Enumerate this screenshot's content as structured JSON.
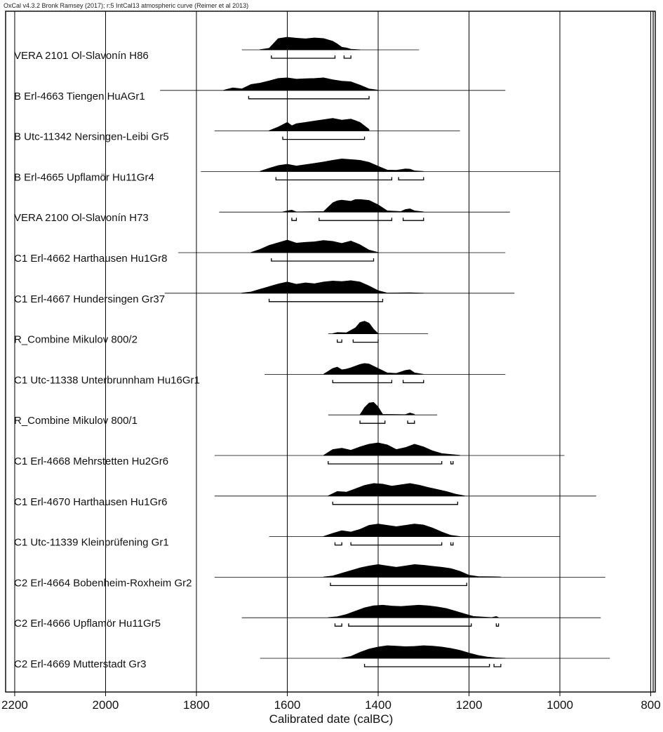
{
  "chart_data": {
    "type": "area",
    "credit": "OxCal v4.3.2 Bronk Ramsey (2017); r:5 IntCal13 atmospheric curve (Reimer et al 2013)",
    "xlabel": "Calibrated date (calBC)",
    "xlim": [
      2220,
      790
    ],
    "x_ticks": [
      2200,
      2000,
      1800,
      1600,
      1400,
      1200,
      1000,
      800
    ],
    "x_tick_labels": [
      "2200",
      "2000",
      "1800",
      "1600",
      "1400",
      "1200",
      "1000",
      "800"
    ],
    "grid": "vertical",
    "distributions": [
      {
        "label": "VERA 2101 Ol-Slavonín H86",
        "x": [
          1660,
          1640,
          1620,
          1600,
          1580,
          1560,
          1540,
          1520,
          1500,
          1490,
          1480,
          1470,
          1460,
          1440
        ],
        "y": [
          0.02,
          0.12,
          0.85,
          0.95,
          0.88,
          0.83,
          0.9,
          0.85,
          0.65,
          0.45,
          0.2,
          0.15,
          0.05,
          0.01
        ],
        "line": [
          1700,
          1310
        ],
        "ranges": [
          [
            1635,
            1495
          ],
          [
            1475,
            1460
          ]
        ]
      },
      {
        "label": "B Erl-4663 Tiengen HuAGr1",
        "x": [
          1740,
          1720,
          1700,
          1680,
          1660,
          1640,
          1620,
          1600,
          1580,
          1560,
          1540,
          1520,
          1500,
          1480,
          1460,
          1440,
          1420,
          1400
        ],
        "y": [
          0.02,
          0.2,
          0.12,
          0.45,
          0.55,
          0.72,
          0.9,
          0.95,
          0.85,
          0.88,
          0.9,
          0.95,
          0.8,
          0.7,
          0.65,
          0.4,
          0.12,
          0.02
        ],
        "line": [
          1880,
          1120
        ],
        "ranges": [
          [
            1685,
            1420
          ]
        ]
      },
      {
        "label": "B Utc-11342 Nersingen-Leibi Gr5",
        "x": [
          1640,
          1620,
          1600,
          1590,
          1580,
          1560,
          1540,
          1520,
          1500,
          1480,
          1460,
          1440,
          1420
        ],
        "y": [
          0.03,
          0.3,
          0.65,
          0.4,
          0.55,
          0.65,
          0.75,
          0.85,
          0.95,
          0.82,
          0.9,
          0.65,
          0.12
        ],
        "line": [
          1760,
          1220
        ],
        "ranges": [
          [
            1610,
            1430
          ]
        ]
      },
      {
        "label": "B Erl-4665 Upflamör Hu11Gr4",
        "x": [
          1660,
          1640,
          1620,
          1600,
          1580,
          1560,
          1540,
          1520,
          1500,
          1480,
          1460,
          1440,
          1420,
          1400,
          1380,
          1360,
          1340,
          1330,
          1320,
          1300
        ],
        "y": [
          0.02,
          0.25,
          0.45,
          0.55,
          0.42,
          0.52,
          0.62,
          0.72,
          0.85,
          0.95,
          0.9,
          0.85,
          0.7,
          0.4,
          0.12,
          0.1,
          0.2,
          0.18,
          0.06,
          0.01
        ],
        "line": [
          1790,
          1000
        ],
        "ranges": [
          [
            1625,
            1370
          ],
          [
            1355,
            1300
          ]
        ]
      },
      {
        "label": "VERA 2100 Ol-Slavonín H73",
        "x": [
          1610,
          1600,
          1590,
          1580,
          1520,
          1500,
          1490,
          1480,
          1460,
          1450,
          1440,
          1420,
          1400,
          1380,
          1350,
          1340,
          1330,
          1320,
          1300
        ],
        "y": [
          0.02,
          0.1,
          0.15,
          0.02,
          0.05,
          0.7,
          0.85,
          0.9,
          0.82,
          0.95,
          0.95,
          0.88,
          0.55,
          0.1,
          0.05,
          0.2,
          0.25,
          0.1,
          0.02
        ],
        "line": [
          1750,
          1110
        ],
        "ranges": [
          [
            1590,
            1580
          ],
          [
            1530,
            1370
          ],
          [
            1345,
            1300
          ]
        ]
      },
      {
        "label": "C1 Erl-4662 Harthausen Hu1Gr8",
        "x": [
          1680,
          1660,
          1640,
          1620,
          1600,
          1580,
          1560,
          1540,
          1520,
          1500,
          1480,
          1460,
          1440,
          1420,
          1400
        ],
        "y": [
          0.02,
          0.25,
          0.55,
          0.75,
          0.95,
          0.72,
          0.78,
          0.82,
          0.92,
          0.85,
          0.7,
          0.88,
          0.6,
          0.2,
          0.02
        ],
        "line": [
          1840,
          1120
        ],
        "ranges": [
          [
            1635,
            1410
          ]
        ]
      },
      {
        "label": "C1 Erl-4667 Hundersingen Gr37",
        "x": [
          1700,
          1680,
          1660,
          1640,
          1620,
          1600,
          1580,
          1560,
          1540,
          1520,
          1500,
          1480,
          1460,
          1440,
          1420,
          1400,
          1380,
          1330,
          1300
        ],
        "y": [
          0.02,
          0.1,
          0.3,
          0.5,
          0.7,
          0.85,
          0.68,
          0.78,
          0.72,
          0.85,
          0.92,
          0.88,
          0.95,
          0.85,
          0.55,
          0.2,
          0.02,
          0.04,
          0.01
        ],
        "line": [
          1870,
          1100
        ],
        "ranges": [
          [
            1640,
            1390
          ]
        ]
      },
      {
        "label": "R_Combine Mikulov 800/2",
        "x": [
          1500,
          1490,
          1470,
          1450,
          1440,
          1430,
          1420,
          1410,
          1400
        ],
        "y": [
          0.02,
          0.1,
          0.08,
          0.45,
          0.85,
          0.95,
          0.8,
          0.35,
          0.02
        ],
        "line": [
          1510,
          1290
        ],
        "ranges": [
          [
            1490,
            1480
          ],
          [
            1455,
            1400
          ]
        ]
      },
      {
        "label": "C1 Utc-11338 Unterbrunnham Hu16Gr1",
        "x": [
          1520,
          1500,
          1490,
          1480,
          1470,
          1460,
          1440,
          1430,
          1420,
          1400,
          1380,
          1360,
          1340,
          1330,
          1320,
          1300
        ],
        "y": [
          0.02,
          0.45,
          0.55,
          0.35,
          0.4,
          0.5,
          0.75,
          0.82,
          0.78,
          0.45,
          0.12,
          0.08,
          0.3,
          0.35,
          0.12,
          0.01
        ],
        "line": [
          1650,
          1120
        ],
        "ranges": [
          [
            1500,
            1370
          ],
          [
            1345,
            1300
          ]
        ]
      },
      {
        "label": "R_Combine Mikulov 800/1",
        "x": [
          1440,
          1430,
          1420,
          1410,
          1400,
          1390,
          1340,
          1330,
          1320
        ],
        "y": [
          0.02,
          0.55,
          0.9,
          0.95,
          0.6,
          0.05,
          0.03,
          0.15,
          0.05
        ],
        "line": [
          1510,
          1270
        ],
        "ranges": [
          [
            1440,
            1385
          ],
          [
            1335,
            1320
          ]
        ]
      },
      {
        "label": "C1 Erl-4668 Mehrstetten Hu2Gr6",
        "x": [
          1520,
          1500,
          1480,
          1460,
          1440,
          1420,
          1400,
          1380,
          1360,
          1340,
          1320,
          1300,
          1280,
          1260,
          1240,
          1220
        ],
        "y": [
          0.02,
          0.45,
          0.55,
          0.4,
          0.65,
          0.85,
          0.95,
          0.8,
          0.45,
          0.6,
          0.85,
          0.65,
          0.35,
          0.15,
          0.08,
          0.02
        ],
        "line": [
          1760,
          990
        ],
        "ranges": [
          [
            1510,
            1260
          ],
          [
            1240,
            1235
          ]
        ]
      },
      {
        "label": "C1 Erl-4670 Harthausen Hu1Gr6",
        "x": [
          1510,
          1490,
          1470,
          1450,
          1430,
          1410,
          1390,
          1370,
          1350,
          1330,
          1310,
          1290,
          1270,
          1250,
          1230,
          1210
        ],
        "y": [
          0.02,
          0.35,
          0.3,
          0.55,
          0.8,
          0.95,
          0.9,
          0.75,
          0.85,
          0.95,
          0.82,
          0.65,
          0.5,
          0.35,
          0.15,
          0.02
        ],
        "line": [
          1760,
          920
        ],
        "ranges": [
          [
            1500,
            1225
          ]
        ]
      },
      {
        "label": "C1 Utc-11339 Kleinprüfening Gr1",
        "x": [
          1520,
          1500,
          1480,
          1460,
          1440,
          1420,
          1400,
          1380,
          1360,
          1340,
          1320,
          1300,
          1280,
          1260,
          1240,
          1220
        ],
        "y": [
          0.02,
          0.25,
          0.45,
          0.35,
          0.55,
          0.85,
          0.95,
          0.85,
          0.75,
          0.85,
          0.95,
          0.88,
          0.65,
          0.35,
          0.1,
          0.01
        ],
        "line": [
          1640,
          1000
        ],
        "ranges": [
          [
            1495,
            1480
          ],
          [
            1460,
            1260
          ],
          [
            1240,
            1235
          ]
        ]
      },
      {
        "label": "C2 Erl-4664 Bobenheim-Roxheim Gr2",
        "x": [
          1520,
          1500,
          1480,
          1460,
          1440,
          1420,
          1400,
          1380,
          1360,
          1340,
          1320,
          1300,
          1280,
          1260,
          1240,
          1220,
          1200,
          1180,
          1140,
          1130
        ],
        "y": [
          0.02,
          0.1,
          0.3,
          0.5,
          0.7,
          0.85,
          0.95,
          0.85,
          0.75,
          0.85,
          0.95,
          0.9,
          0.82,
          0.75,
          0.65,
          0.45,
          0.15,
          0.05,
          0.03,
          0.02
        ],
        "line": [
          1760,
          900
        ],
        "ranges": [
          [
            1505,
            1205
          ]
        ]
      },
      {
        "label": "C2 Erl-4666 Upflamör Hu11Gr5",
        "x": [
          1510,
          1490,
          1470,
          1450,
          1430,
          1410,
          1390,
          1370,
          1350,
          1330,
          1310,
          1290,
          1270,
          1250,
          1230,
          1210,
          1190,
          1150,
          1140,
          1135
        ],
        "y": [
          0.02,
          0.08,
          0.25,
          0.5,
          0.75,
          0.9,
          0.95,
          0.88,
          0.85,
          0.9,
          0.95,
          0.9,
          0.82,
          0.7,
          0.5,
          0.3,
          0.1,
          0.02,
          0.1,
          0.02
        ],
        "line": [
          1700,
          910
        ],
        "ranges": [
          [
            1495,
            1480
          ],
          [
            1465,
            1195
          ],
          [
            1140,
            1135
          ]
        ]
      },
      {
        "label": "C2 Erl-4669 Mutterstadt Gr3",
        "x": [
          1480,
          1460,
          1440,
          1420,
          1400,
          1380,
          1360,
          1340,
          1320,
          1300,
          1280,
          1260,
          1240,
          1220,
          1200,
          1180,
          1160,
          1140,
          1120
        ],
        "y": [
          0.02,
          0.15,
          0.45,
          0.7,
          0.85,
          0.95,
          0.92,
          0.88,
          0.9,
          0.95,
          0.92,
          0.85,
          0.75,
          0.6,
          0.4,
          0.22,
          0.1,
          0.04,
          0.01
        ],
        "line": [
          1660,
          890
        ],
        "ranges": [
          [
            1430,
            1155
          ],
          [
            1145,
            1130
          ]
        ]
      }
    ]
  }
}
